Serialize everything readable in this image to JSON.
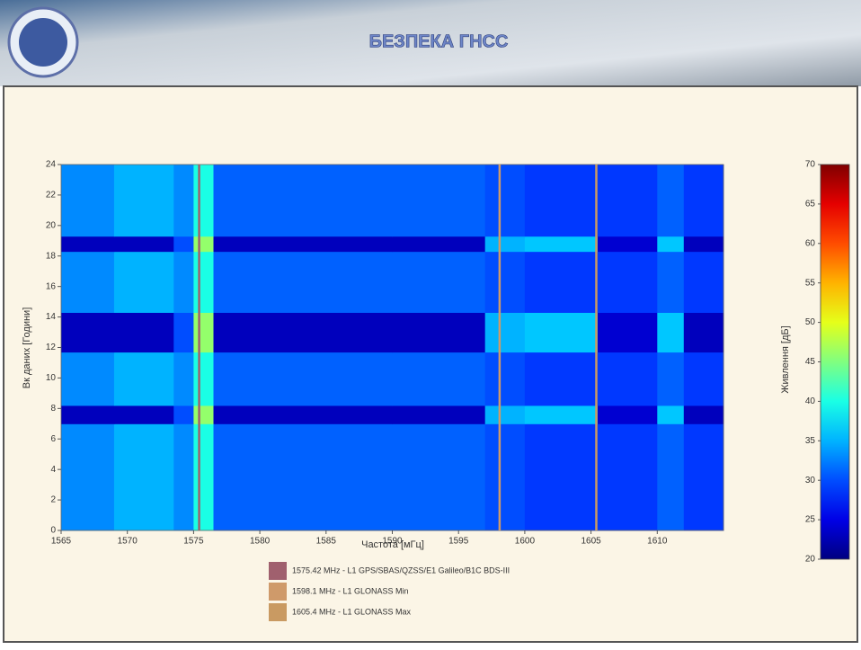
{
  "header": {
    "title": "БЕЗПЕКА ГНСС"
  },
  "chart_data": {
    "type": "heatmap",
    "xlabel": "Частота [мГц]",
    "ylabel": "Вк даних [Години]",
    "colorbar_label": "Живлення [дБ]",
    "x_edges": [
      1565,
      1569,
      1573.5,
      1575,
      1576.5,
      1590,
      1597,
      1600,
      1605.5,
      1610,
      1612,
      1615
    ],
    "y_edges": [
      0,
      7,
      8.2,
      11.7,
      14.3,
      18.3,
      19.3,
      24
    ],
    "z": [
      [
        33,
        35,
        33,
        40,
        31,
        31,
        30,
        29,
        29,
        31,
        29
      ],
      [
        23,
        23,
        30,
        46,
        23,
        23,
        35,
        36,
        24,
        36,
        23
      ],
      [
        33,
        35,
        33,
        40,
        31,
        31,
        30,
        29,
        29,
        31,
        29
      ],
      [
        23,
        23,
        30,
        46,
        23,
        23,
        35,
        36,
        24,
        36,
        23
      ],
      [
        33,
        35,
        33,
        40,
        31,
        31,
        30,
        29,
        29,
        31,
        29
      ],
      [
        23,
        23,
        30,
        46,
        23,
        23,
        35,
        36,
        24,
        36,
        23
      ],
      [
        33,
        35,
        33,
        40,
        31,
        31,
        30,
        29,
        29,
        31,
        29
      ]
    ],
    "colormap": "jet",
    "xlim": [
      1565,
      1615
    ],
    "xticks": [
      1565,
      1570,
      1575,
      1580,
      1585,
      1590,
      1595,
      1600,
      1605,
      1610
    ],
    "ylim": [
      0,
      24
    ],
    "yticks": [
      0,
      2,
      4,
      6,
      8,
      10,
      12,
      14,
      16,
      18,
      20,
      22,
      24
    ],
    "clim": [
      20,
      70
    ],
    "cticks": [
      20,
      25,
      30,
      35,
      40,
      45,
      50,
      55,
      60,
      65,
      70
    ],
    "markers": [
      {
        "value": 1575.42,
        "color": "#a0606e",
        "label": "1575.42 MHz - L1 GPS/SBAS/QZSS/E1 Galileo/B1C BDS-III"
      },
      {
        "value": 1598.1,
        "color": "#cf9a6a",
        "label": "1598.1 MHz - L1 GLONASS Min"
      },
      {
        "value": 1605.4,
        "color": "#c99a62",
        "label": "1605.4 MHz - L1 GLONASS Max"
      }
    ]
  }
}
